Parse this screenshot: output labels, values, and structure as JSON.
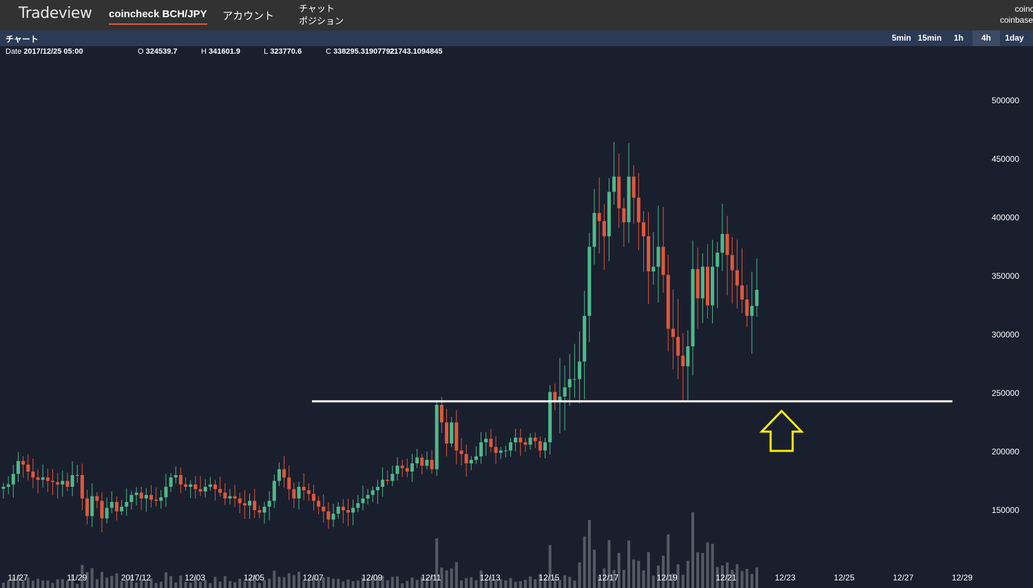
{
  "header": {
    "brand": "Tradeview",
    "pair_tab": "coincheck BCH/JPY",
    "account": "アカウント",
    "chat": "チャット",
    "position": "ポジション",
    "exchanges": [
      "coincheck",
      "coinbase"
    ]
  },
  "subbar": {
    "title": "チャート",
    "timeframes": [
      "5min",
      "15min",
      "1h",
      "4h",
      "1day"
    ],
    "active_timeframe": "4h"
  },
  "ohlc": {
    "date_label": "Date",
    "date": "2017/12/25 05:00",
    "o_label": "O",
    "o": "324539.7",
    "h_label": "H",
    "h": "341601.9",
    "l_label": "L",
    "l": "323770.6",
    "c_label": "C",
    "c": "338295.31907792",
    "extra": "21743.1094845"
  },
  "colors": {
    "up": "#4fb88a",
    "down": "#e0573c",
    "volume": "#555a63",
    "support_line": "#ffffff",
    "arrow": "#ffee00",
    "background": "#1a1f2e",
    "accent": "#e0573c"
  },
  "chart_data": {
    "type": "candlestick",
    "interval": "4h",
    "ylim": [
      100000,
      520000
    ],
    "y_ticks": [
      150000,
      200000,
      250000,
      300000,
      350000,
      400000,
      450000,
      500000
    ],
    "x_ticks": [
      "11/27",
      "11/29",
      "2017/12",
      "12/03",
      "12/05",
      "12/07",
      "12/09",
      "12/11",
      "12/13",
      "12/15",
      "12/17",
      "12/19",
      "12/21",
      "12/23",
      "12/25",
      "12/27",
      "12/29"
    ],
    "support_level": 243000,
    "annotation": "up-arrow pointing to support at 12/23",
    "closes": [
      170000,
      172000,
      181000,
      192000,
      189000,
      183000,
      178000,
      176000,
      178000,
      175000,
      174000,
      172000,
      175000,
      170000,
      180000,
      180000,
      160000,
      145000,
      162000,
      158000,
      143000,
      152000,
      157000,
      149000,
      153000,
      157000,
      163000,
      165000,
      160000,
      163000,
      159000,
      158000,
      161000,
      170000,
      178000,
      180000,
      172000,
      170000,
      172000,
      168000,
      166000,
      170000,
      172000,
      168000,
      165000,
      160000,
      162000,
      160000,
      156000,
      154000,
      158000,
      150000,
      148000,
      153000,
      158000,
      175000,
      185000,
      178000,
      168000,
      160000,
      170000,
      167000,
      164000,
      158000,
      153000,
      149000,
      142000,
      147000,
      153000,
      150000,
      148000,
      152000,
      156000,
      160000,
      163000,
      167000,
      170000,
      176000,
      175000,
      181000,
      188000,
      186000,
      183000,
      190000,
      195000,
      188000,
      193000,
      185000,
      240000,
      225000,
      207000,
      225000,
      201000,
      198000,
      190000,
      193000,
      196000,
      208000,
      211000,
      204000,
      199000,
      201000,
      201000,
      208000,
      212000,
      208000,
      206000,
      212000,
      209000,
      201000,
      208000,
      251000,
      243000,
      247000,
      255000,
      262000,
      262000,
      277000,
      316000,
      375000,
      404000,
      397000,
      384000,
      422000,
      435000,
      408000,
      396000,
      435000,
      417000,
      396000,
      384000,
      354000,
      358000,
      375000,
      351000,
      305000,
      298000,
      282000,
      273000,
      290000,
      356000,
      331000,
      358000,
      325000,
      358000,
      370000,
      386000,
      368000,
      355000,
      342000,
      330000,
      316000,
      324539,
      338295
    ]
  }
}
